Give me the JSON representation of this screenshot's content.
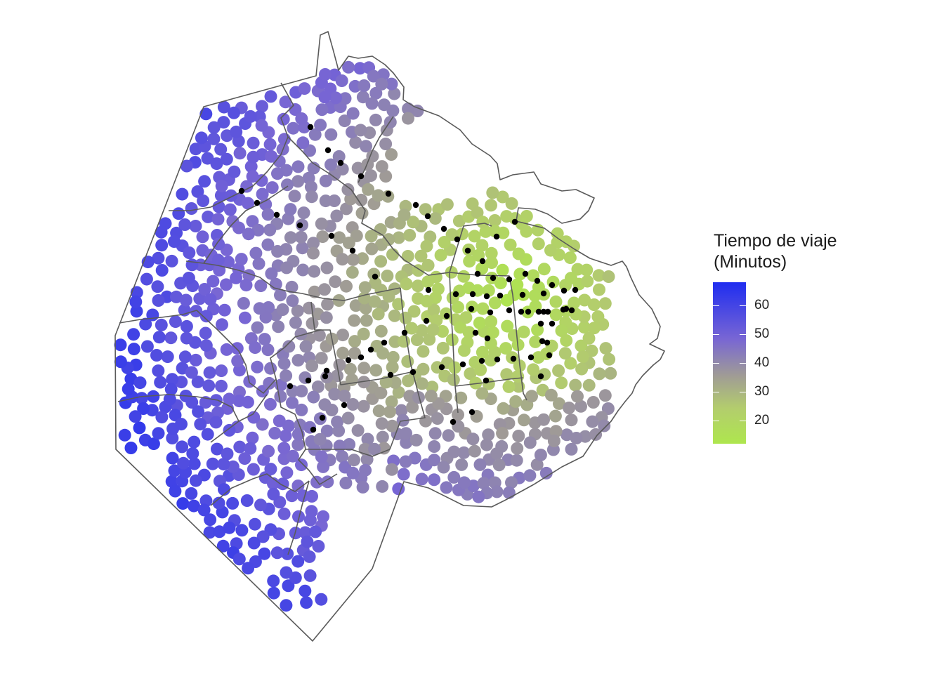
{
  "chart_data": {
    "type": "scatter",
    "legend": {
      "title_line1": "Tiempo de viaje",
      "title_line2": "(Minutos)",
      "ticks": [
        60,
        50,
        40,
        30,
        20
      ],
      "range": [
        12,
        68
      ],
      "colors": {
        "high": "#1f2df0",
        "upper": "#7866d4",
        "mid": "#a09c95",
        "lower": "#b3cd6d",
        "low": "#aee64e"
      },
      "placement": "right"
    },
    "boundary_color": "#555555",
    "station_color": "#000000"
  }
}
